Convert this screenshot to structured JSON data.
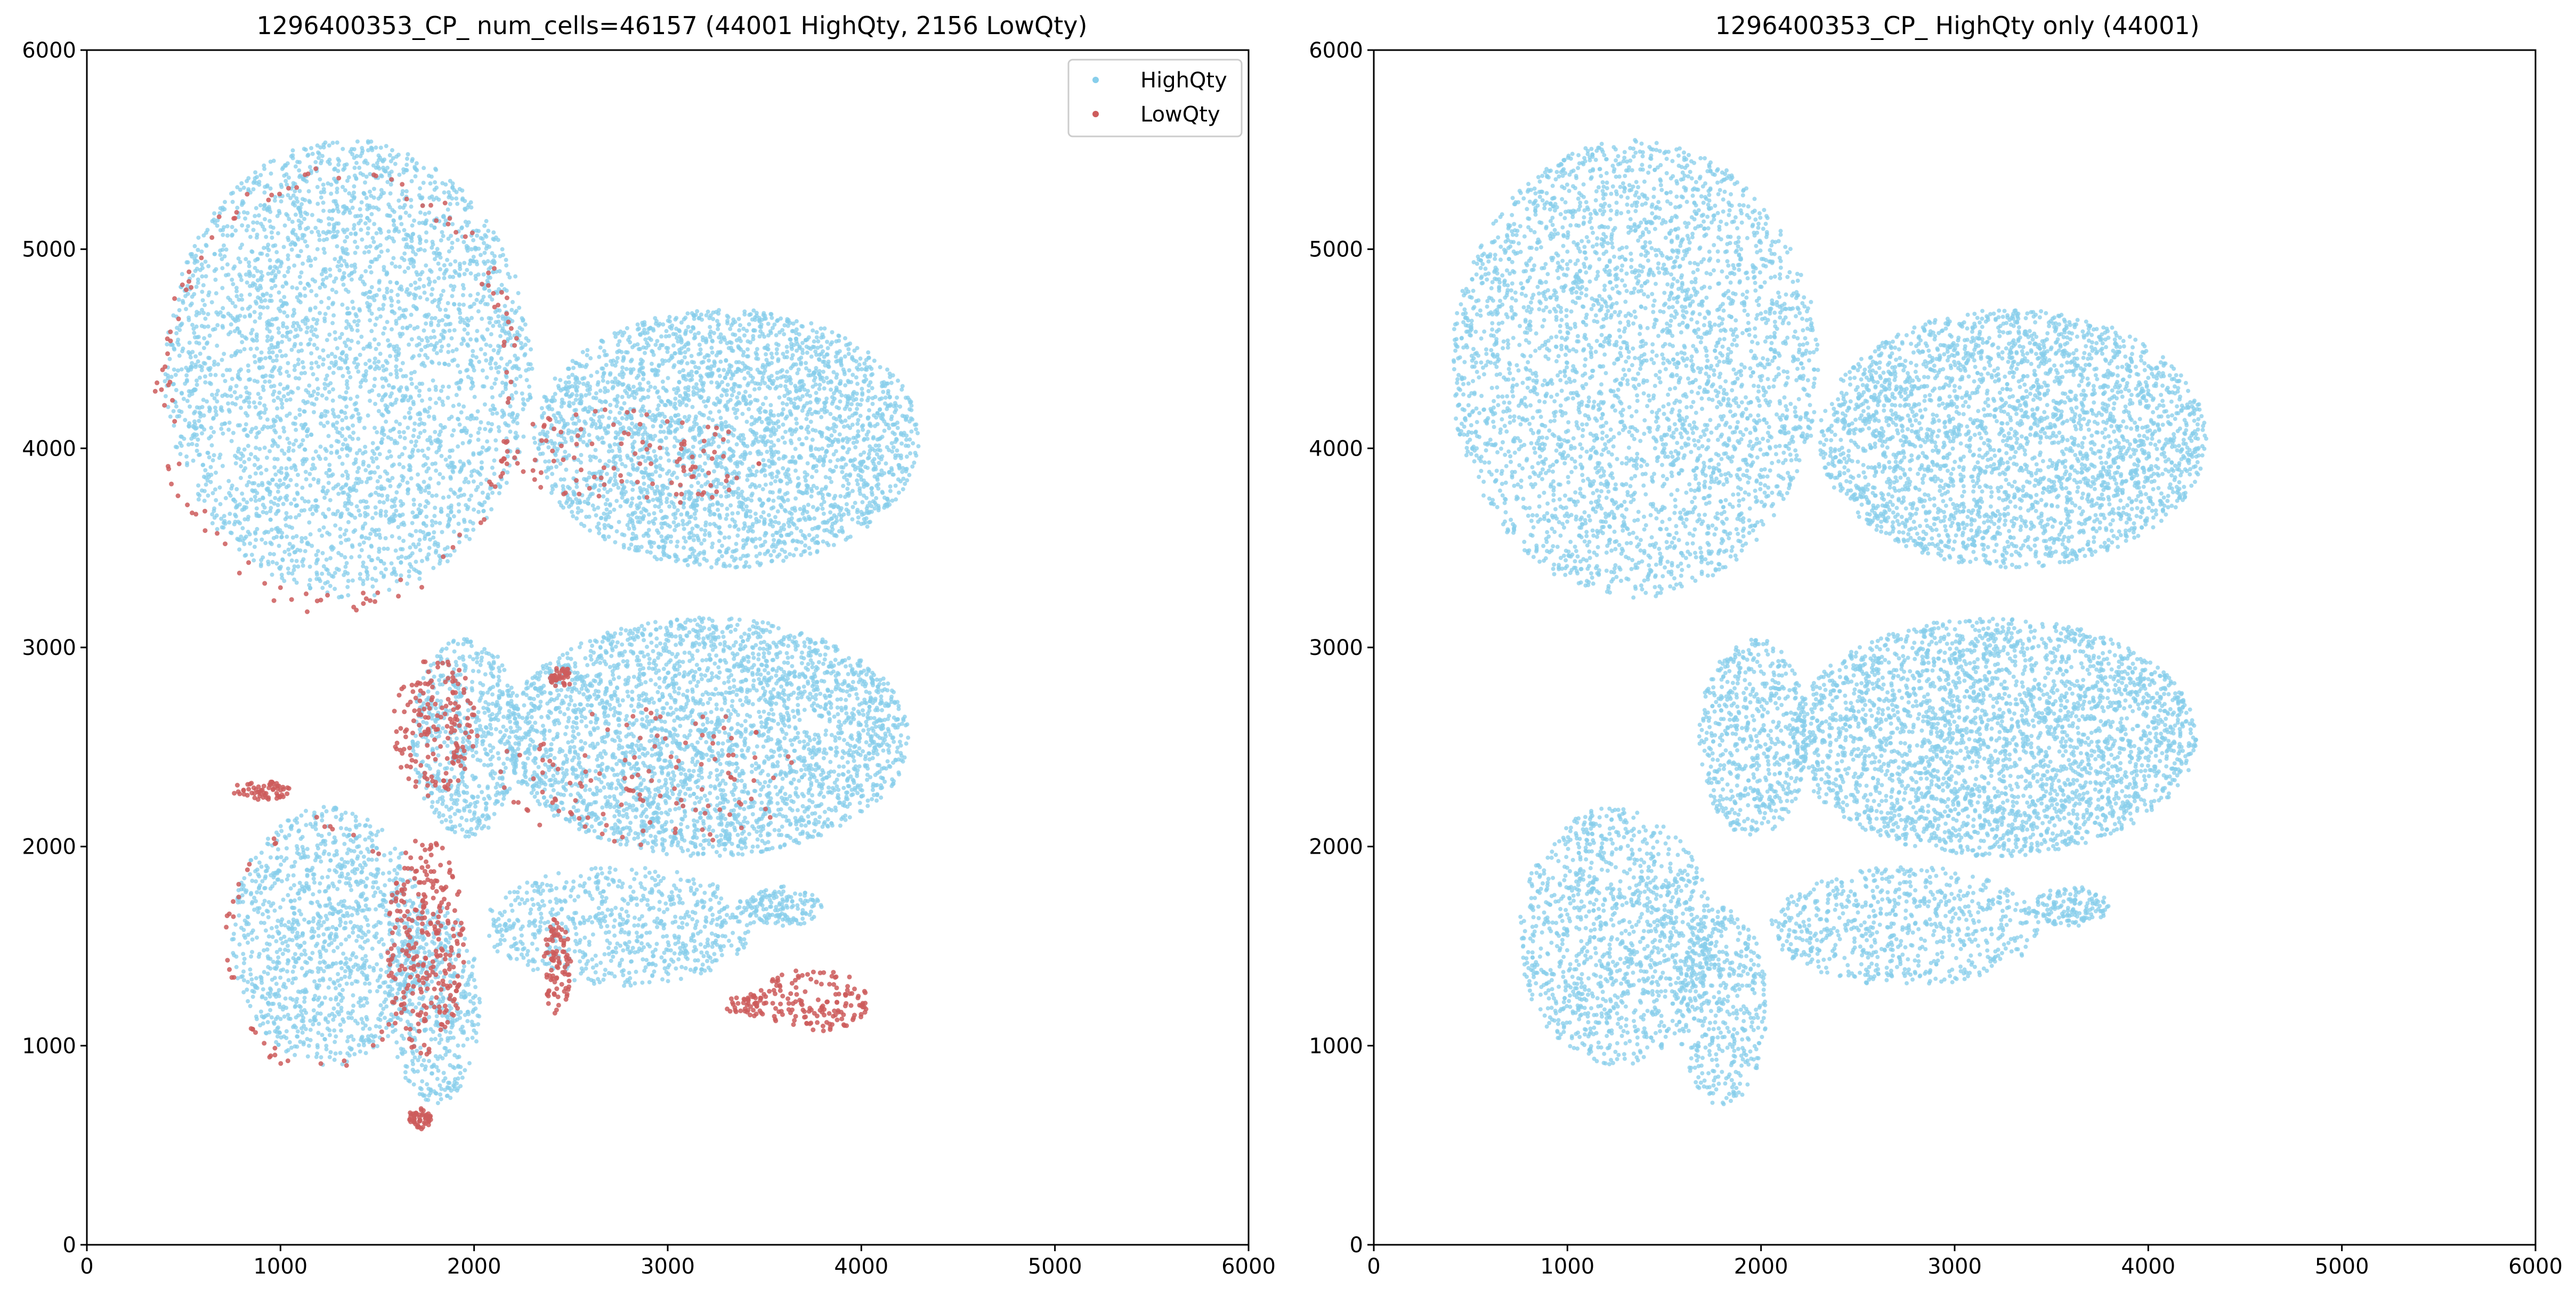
{
  "colors": {
    "high_qty": "#87CEEB",
    "low_qty": "#CD5C5C",
    "axes": "#000000",
    "background": "#FFFFFF",
    "legend_border": "#CCCCCC"
  },
  "chart_data": [
    {
      "type": "scatter",
      "title": "1296400353_CP_ num_cells=46157 (44001 HighQty, 2156 LowQty)",
      "xlabel": "",
      "ylabel": "",
      "xlim": [
        0,
        6000
      ],
      "ylim": [
        0,
        6000
      ],
      "xticks": [
        "0",
        "1000",
        "2000",
        "3000",
        "4000",
        "5000",
        "6000"
      ],
      "yticks": [
        "0",
        "1000",
        "2000",
        "3000",
        "4000",
        "5000",
        "6000"
      ],
      "grid": false,
      "legend": {
        "placement": "top-right",
        "entries": [
          "HighQty",
          "LowQty"
        ]
      },
      "series": [
        {
          "name": "HighQty",
          "count": 44001,
          "regions": [
            {
              "cx": 1350,
              "cy": 4400,
              "rx": 950,
              "ry": 1150,
              "n": 3400
            },
            {
              "cx": 3300,
              "cy": 4050,
              "rx": 1000,
              "ry": 650,
              "n": 3000
            },
            {
              "cx": 3200,
              "cy": 2550,
              "rx": 1050,
              "ry": 600,
              "n": 3100
            },
            {
              "cx": 1250,
              "cy": 1550,
              "rx": 500,
              "ry": 650,
              "n": 1200
            },
            {
              "cx": 1800,
              "cy": 1200,
              "rx": 230,
              "ry": 500,
              "n": 450
            },
            {
              "cx": 1960,
              "cy": 2550,
              "rx": 280,
              "ry": 500,
              "n": 600
            },
            {
              "cx": 2750,
              "cy": 1600,
              "rx": 700,
              "ry": 300,
              "n": 700
            },
            {
              "cx": 3600,
              "cy": 1700,
              "rx": 200,
              "ry": 100,
              "n": 150
            }
          ]
        },
        {
          "name": "LowQty",
          "count": 2156,
          "regions": [
            {
              "cx": 1750,
              "cy": 1500,
              "rx": 200,
              "ry": 550,
              "n": 260
            },
            {
              "cx": 1800,
              "cy": 2600,
              "rx": 220,
              "ry": 350,
              "n": 170
            },
            {
              "cx": 2430,
              "cy": 1400,
              "rx": 70,
              "ry": 250,
              "n": 90
            },
            {
              "cx": 3750,
              "cy": 1230,
              "rx": 300,
              "ry": 160,
              "n": 150
            },
            {
              "cx": 3400,
              "cy": 1200,
              "rx": 120,
              "ry": 60,
              "n": 40
            },
            {
              "cx": 2900,
              "cy": 2350,
              "rx": 800,
              "ry": 350,
              "n": 120
            },
            {
              "cx": 2800,
              "cy": 3950,
              "rx": 700,
              "ry": 250,
              "n": 110
            },
            {
              "cx": 1720,
              "cy": 640,
              "rx": 60,
              "ry": 60,
              "n": 50
            },
            {
              "cx": 900,
              "cy": 2280,
              "rx": 150,
              "ry": 50,
              "n": 60
            },
            {
              "cx": 2450,
              "cy": 2850,
              "rx": 60,
              "ry": 50,
              "n": 40
            },
            {
              "cx": 1300,
              "cy": 4300,
              "rx": 950,
              "ry": 1150,
              "n": 120,
              "rim": true
            },
            {
              "cx": 1200,
              "cy": 1500,
              "rx": 500,
              "ry": 650,
              "n": 60,
              "rim": true
            }
          ]
        }
      ]
    },
    {
      "type": "scatter",
      "title": "1296400353_CP_ HighQty only (44001)",
      "xlabel": "",
      "ylabel": "",
      "xlim": [
        0,
        6000
      ],
      "ylim": [
        0,
        6000
      ],
      "xticks": [
        "0",
        "1000",
        "2000",
        "3000",
        "4000",
        "5000",
        "6000"
      ],
      "yticks": [
        "0",
        "1000",
        "2000",
        "3000",
        "4000",
        "5000",
        "6000"
      ],
      "grid": false,
      "series": [
        {
          "name": "HighQty",
          "count": 44001,
          "regions": [
            {
              "cx": 1350,
              "cy": 4400,
              "rx": 950,
              "ry": 1150,
              "n": 3400
            },
            {
              "cx": 3300,
              "cy": 4050,
              "rx": 1000,
              "ry": 650,
              "n": 3000
            },
            {
              "cx": 3200,
              "cy": 2550,
              "rx": 1050,
              "ry": 600,
              "n": 3100
            },
            {
              "cx": 1250,
              "cy": 1550,
              "rx": 500,
              "ry": 650,
              "n": 1200
            },
            {
              "cx": 1800,
              "cy": 1200,
              "rx": 230,
              "ry": 500,
              "n": 450
            },
            {
              "cx": 1960,
              "cy": 2550,
              "rx": 280,
              "ry": 500,
              "n": 600
            },
            {
              "cx": 2750,
              "cy": 1600,
              "rx": 700,
              "ry": 300,
              "n": 700
            },
            {
              "cx": 3600,
              "cy": 1700,
              "rx": 200,
              "ry": 100,
              "n": 150
            }
          ]
        }
      ]
    }
  ]
}
